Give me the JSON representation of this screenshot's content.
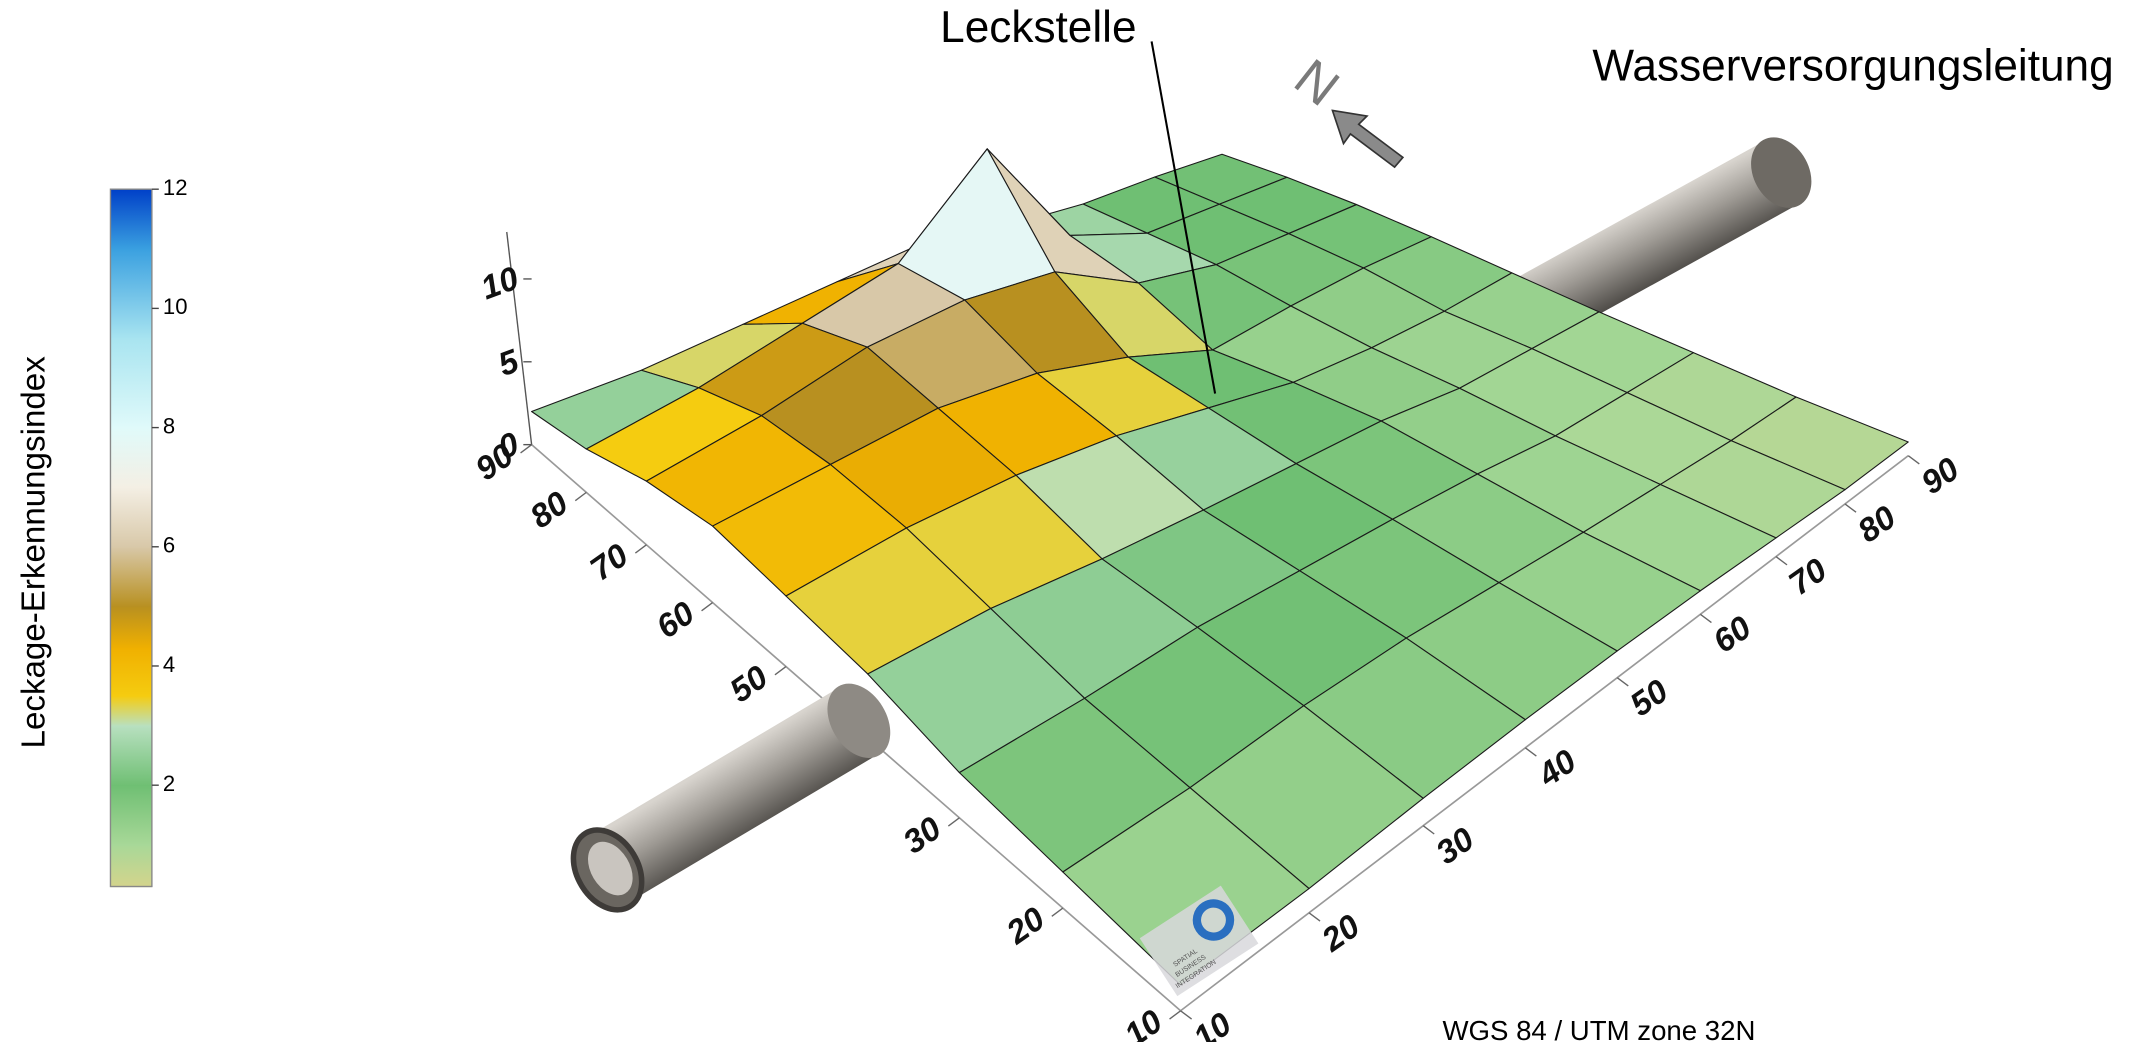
{
  "chart_data": {
    "type": "surface3d",
    "annotation": "Leckstelle",
    "pipe_label": "Wasserversorgungsleitung",
    "north_label": "N",
    "crs": "WGS 84 / UTM zone 32N",
    "logo": [
      "SPATIAL",
      "BUSINESS",
      "INTEGRATION"
    ],
    "x": [
      10,
      20,
      30,
      40,
      50,
      60,
      70,
      80,
      90
    ],
    "y": [
      10,
      20,
      30,
      40,
      50,
      60,
      70,
      80,
      90
    ],
    "xlim": [
      10,
      90
    ],
    "ylim": [
      10,
      90
    ],
    "xticks": [
      10,
      20,
      30,
      40,
      50,
      60,
      70,
      80,
      90
    ],
    "yticks": [
      10,
      20,
      30,
      40,
      50,
      60,
      70,
      80,
      90
    ],
    "zlim": [
      0,
      12
    ],
    "zticks": [
      0,
      5,
      10
    ],
    "z": [
      [
        1,
        1,
        1.2,
        1.3,
        1.3,
        1.2,
        1,
        0.8,
        0.8
      ],
      [
        1.5,
        1.5,
        1.8,
        1.8,
        1.5,
        1.2,
        1,
        0.8,
        0.8
      ],
      [
        2,
        2,
        2.2,
        2,
        1.8,
        1.5,
        1,
        1,
        1
      ],
      [
        3,
        3,
        2.5,
        2.2,
        2,
        1.8,
        1.2,
        1.2,
        1.2
      ],
      [
        3.5,
        4,
        4,
        3.5,
        2.5,
        1.5,
        1.2,
        1.2,
        1.5
      ],
      [
        4,
        4.5,
        5,
        4.5,
        3,
        1,
        1.5,
        1.8,
        1.8
      ],
      [
        3.5,
        4.5,
        6,
        6.5,
        6,
        3,
        2,
        2,
        2
      ],
      [
        2.5,
        3.5,
        5,
        6.5,
        12,
        4,
        2,
        2,
        2
      ],
      [
        2,
        2,
        2.5,
        3,
        3.5,
        2.5,
        2,
        2,
        1.8
      ]
    ],
    "colorbar": {
      "label": "Leckage-Erkennungsindex",
      "lim": [
        0.3,
        12
      ],
      "ticks": [
        2,
        4,
        6,
        8,
        10,
        12
      ],
      "stops": [
        {
          "value": 0.3,
          "color": "#d4d48c"
        },
        {
          "value": 1,
          "color": "#a8d898"
        },
        {
          "value": 2,
          "color": "#6fbf73"
        },
        {
          "value": 3,
          "color": "#b8e0c0"
        },
        {
          "value": 3.5,
          "color": "#f5cc10"
        },
        {
          "value": 4.3,
          "color": "#f0b000"
        },
        {
          "value": 5,
          "color": "#b89020"
        },
        {
          "value": 6,
          "color": "#d8c8a8"
        },
        {
          "value": 7,
          "color": "#f4efe4"
        },
        {
          "value": 8,
          "color": "#e0fafa"
        },
        {
          "value": 9.5,
          "color": "#a8e4f0"
        },
        {
          "value": 11,
          "color": "#3aa0e0"
        },
        {
          "value": 12,
          "color": "#0040c8"
        }
      ]
    }
  }
}
